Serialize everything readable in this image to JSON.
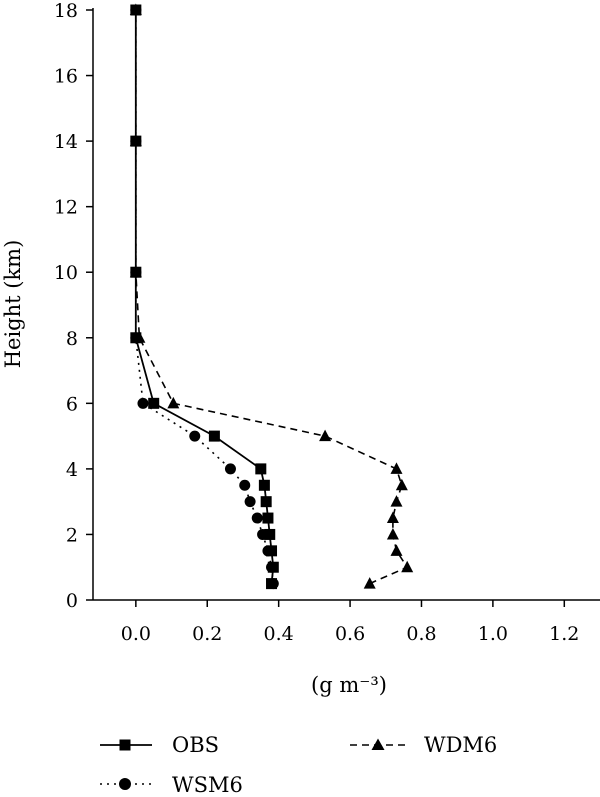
{
  "chart_data": {
    "type": "line",
    "xlabel": "(g m⁻³)",
    "ylabel": "Height (km)",
    "xlim": [
      -0.12,
      1.3
    ],
    "ylim": [
      0,
      18
    ],
    "x_ticks": [
      0.0,
      0.2,
      0.4,
      0.6,
      0.8,
      1.0,
      1.2
    ],
    "x_tick_labels": [
      "0.0",
      "0.2",
      "0.4",
      "0.6",
      "0.8",
      "1.0",
      "1.2"
    ],
    "y_ticks": [
      0,
      2,
      4,
      6,
      8,
      10,
      12,
      14,
      16,
      18
    ],
    "y_tick_labels": [
      "0",
      "2",
      "4",
      "6",
      "8",
      "10",
      "12",
      "14",
      "16",
      "18"
    ],
    "grid": false,
    "legend_position": "bottom",
    "series": [
      {
        "name": "OBS",
        "marker": "square",
        "line": "solid",
        "points": [
          {
            "x": 0.38,
            "y": 0.5
          },
          {
            "x": 0.385,
            "y": 1.0
          },
          {
            "x": 0.38,
            "y": 1.5
          },
          {
            "x": 0.375,
            "y": 2.0
          },
          {
            "x": 0.37,
            "y": 2.5
          },
          {
            "x": 0.365,
            "y": 3.0
          },
          {
            "x": 0.36,
            "y": 3.5
          },
          {
            "x": 0.35,
            "y": 4.0
          },
          {
            "x": 0.22,
            "y": 5.0
          },
          {
            "x": 0.05,
            "y": 6.0
          },
          {
            "x": 0.0,
            "y": 8.0
          },
          {
            "x": 0.0,
            "y": 10.0
          },
          {
            "x": 0.0,
            "y": 14.0
          },
          {
            "x": 0.0,
            "y": 18.0
          }
        ]
      },
      {
        "name": "WSM6",
        "marker": "circle",
        "line": "dotted",
        "points": [
          {
            "x": 0.385,
            "y": 0.5
          },
          {
            "x": 0.38,
            "y": 1.0
          },
          {
            "x": 0.37,
            "y": 1.5
          },
          {
            "x": 0.355,
            "y": 2.0
          },
          {
            "x": 0.34,
            "y": 2.5
          },
          {
            "x": 0.32,
            "y": 3.0
          },
          {
            "x": 0.305,
            "y": 3.5
          },
          {
            "x": 0.265,
            "y": 4.0
          },
          {
            "x": 0.165,
            "y": 5.0
          },
          {
            "x": 0.02,
            "y": 6.0
          },
          {
            "x": 0.0,
            "y": 8.0
          },
          {
            "x": 0.0,
            "y": 10.0
          },
          {
            "x": 0.0,
            "y": 14.0
          },
          {
            "x": 0.0,
            "y": 18.0
          }
        ]
      },
      {
        "name": "WDM6",
        "marker": "triangle",
        "line": "dashed",
        "points": [
          {
            "x": 0.655,
            "y": 0.5
          },
          {
            "x": 0.76,
            "y": 1.0
          },
          {
            "x": 0.73,
            "y": 1.5
          },
          {
            "x": 0.72,
            "y": 2.0
          },
          {
            "x": 0.72,
            "y": 2.5
          },
          {
            "x": 0.73,
            "y": 3.0
          },
          {
            "x": 0.745,
            "y": 3.5
          },
          {
            "x": 0.73,
            "y": 4.0
          },
          {
            "x": 0.53,
            "y": 5.0
          },
          {
            "x": 0.105,
            "y": 6.0
          },
          {
            "x": 0.01,
            "y": 8.0
          },
          {
            "x": 0.0,
            "y": 10.0
          },
          {
            "x": 0.0,
            "y": 14.0
          },
          {
            "x": 0.0,
            "y": 18.0
          }
        ]
      }
    ]
  },
  "legend": {
    "items": [
      {
        "label": "OBS",
        "marker": "square",
        "line": "solid"
      },
      {
        "label": "WDM6",
        "marker": "triangle",
        "line": "dashed"
      },
      {
        "label": "WSM6",
        "marker": "circle",
        "line": "dotted"
      }
    ]
  }
}
